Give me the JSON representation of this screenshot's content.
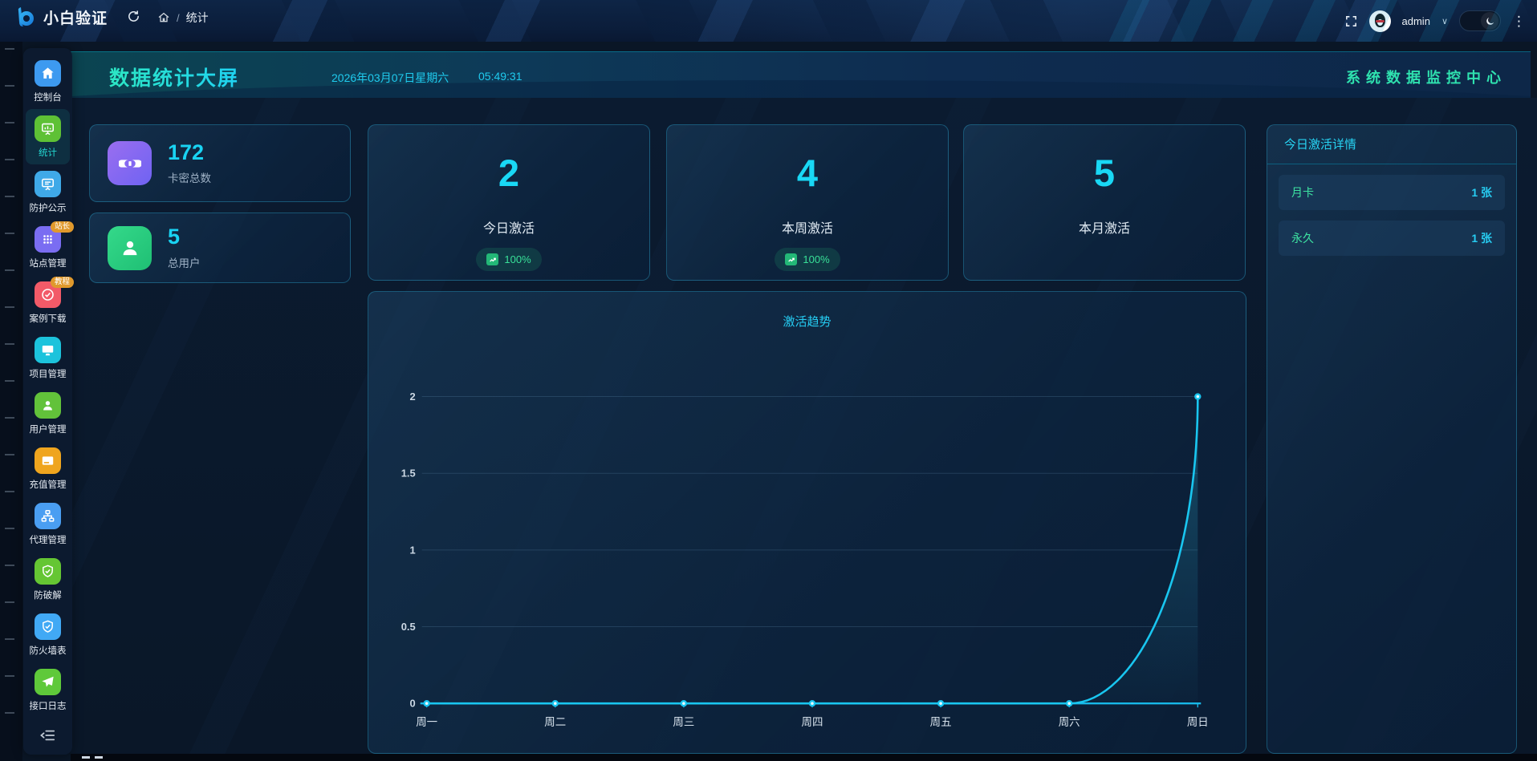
{
  "topbar": {
    "brand": "小白验证",
    "breadcrumb_sep": "/",
    "breadcrumb": "统计",
    "user": "admin",
    "icons": {
      "refresh": "refresh-arc",
      "home": "house",
      "fullscreen": "corner-brackets",
      "theme": "moon",
      "more": "⋮",
      "chevron": "∨"
    }
  },
  "sidebar": {
    "items": [
      {
        "label": "控制台",
        "icon": "home"
      },
      {
        "label": "统计",
        "icon": "chart-board",
        "active": true
      },
      {
        "label": "防护公示",
        "icon": "board"
      },
      {
        "label": "站点管理",
        "icon": "apps-grid",
        "badge": "站长"
      },
      {
        "label": "案例下载",
        "icon": "check-circle",
        "badge": "教程"
      },
      {
        "label": "项目管理",
        "icon": "monitor"
      },
      {
        "label": "用户管理",
        "icon": "user"
      },
      {
        "label": "充值管理",
        "icon": "credit-card"
      },
      {
        "label": "代理管理",
        "icon": "sitemap"
      },
      {
        "label": "防破解",
        "icon": "shield-check"
      },
      {
        "label": "防火墙表",
        "icon": "shield-check"
      },
      {
        "label": "接口日志",
        "icon": "paper-plane"
      }
    ]
  },
  "header": {
    "title": "数据统计大屏",
    "date": "2026年03月07日星期六",
    "time": "05:49:31",
    "subtitle": "系统数据监控中心"
  },
  "stats": {
    "left": [
      {
        "value": "172",
        "label": "卡密总数"
      },
      {
        "value": "5",
        "label": "总用户"
      }
    ],
    "center": [
      {
        "value": "2",
        "label": "今日激活",
        "badge": "100%"
      },
      {
        "value": "4",
        "label": "本周激活",
        "badge": "100%"
      },
      {
        "value": "5",
        "label": "本月激活"
      }
    ]
  },
  "chart_data": {
    "type": "line",
    "title": "激活趋势",
    "x": [
      "周一",
      "周二",
      "周三",
      "周四",
      "周五",
      "周六",
      "周日"
    ],
    "series": [
      {
        "name": "激活",
        "values": [
          0,
          0,
          0,
          0,
          0,
          0,
          2
        ]
      }
    ],
    "ylim": [
      0,
      2
    ],
    "yticks": [
      0,
      0.5,
      1,
      1.5,
      2
    ],
    "grid": true,
    "legend": false,
    "line_color": "#19c6f0",
    "area_color": "#2eb4d7"
  },
  "panel": {
    "title": "今日激活详情",
    "rows": [
      {
        "name": "月卡",
        "value": "1 张"
      },
      {
        "name": "永久",
        "value": "1 张"
      }
    ]
  },
  "colors": {
    "accent_cyan": "#19d3f3",
    "accent_teal": "#2fe2af",
    "badge_green": "#38e098",
    "badge_orange": "#e0992c"
  }
}
